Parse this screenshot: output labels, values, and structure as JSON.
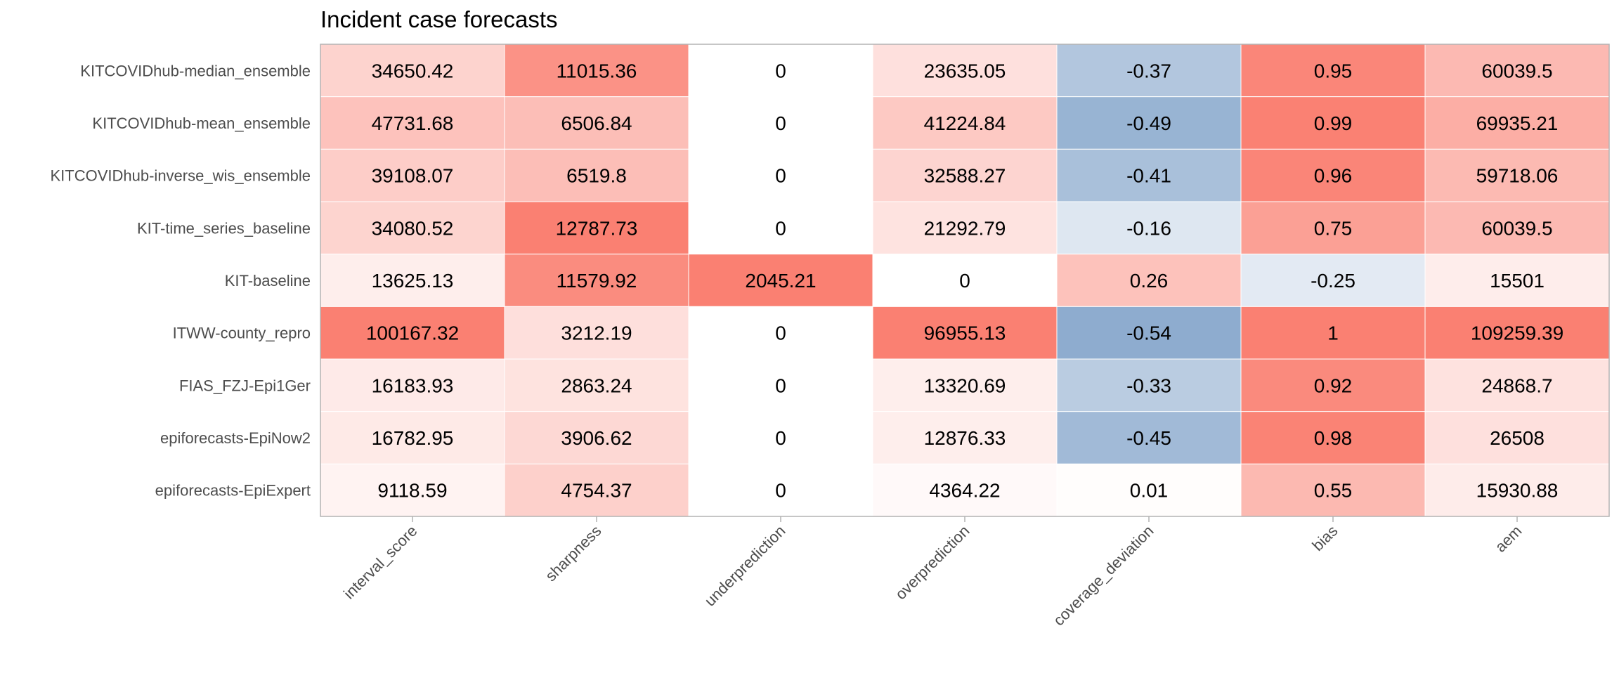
{
  "chart_data": {
    "type": "heatmap",
    "title": "Incident case forecasts",
    "xlabel": "",
    "ylabel": "",
    "columns": [
      "interval_score",
      "sharpness",
      "underprediction",
      "overprediction",
      "coverage_deviation",
      "bias",
      "aem"
    ],
    "rows": [
      "KITCOVIDhub-median_ensemble",
      "KITCOVIDhub-mean_ensemble",
      "KITCOVIDhub-inverse_wis_ensemble",
      "KIT-time_series_baseline",
      "KIT-baseline",
      "ITWW-county_repro",
      "FIAS_FZJ-Epi1Ger",
      "epiforecasts-EpiNow2",
      "epiforecasts-EpiExpert"
    ],
    "values": [
      [
        "34650.42",
        "11015.36",
        "0",
        "23635.05",
        "-0.37",
        "0.95",
        "60039.5"
      ],
      [
        "47731.68",
        "6506.84",
        "0",
        "41224.84",
        "-0.49",
        "0.99",
        "69935.21"
      ],
      [
        "39108.07",
        "6519.8",
        "0",
        "32588.27",
        "-0.41",
        "0.96",
        "59718.06"
      ],
      [
        "34080.52",
        "12787.73",
        "0",
        "21292.79",
        "-0.16",
        "0.75",
        "60039.5"
      ],
      [
        "13625.13",
        "11579.92",
        "2045.21",
        "0",
        "0.26",
        "-0.25",
        "15501"
      ],
      [
        "100167.32",
        "3212.19",
        "0",
        "96955.13",
        "-0.54",
        "1",
        "109259.39"
      ],
      [
        "16183.93",
        "2863.24",
        "0",
        "13320.69",
        "-0.33",
        "0.92",
        "24868.7"
      ],
      [
        "16782.95",
        "3906.62",
        "0",
        "12876.33",
        "-0.45",
        "0.98",
        "26508"
      ],
      [
        "9118.59",
        "4754.37",
        "0",
        "4364.22",
        "0.01",
        "0.55",
        "15930.88"
      ]
    ],
    "colors": {
      "high": "#fa8072",
      "low": "#ffffff",
      "negative": "#88a8cc",
      "border": "#b3b3b3",
      "label_text": "#4d4d4d",
      "cell_text": "#000000"
    }
  }
}
